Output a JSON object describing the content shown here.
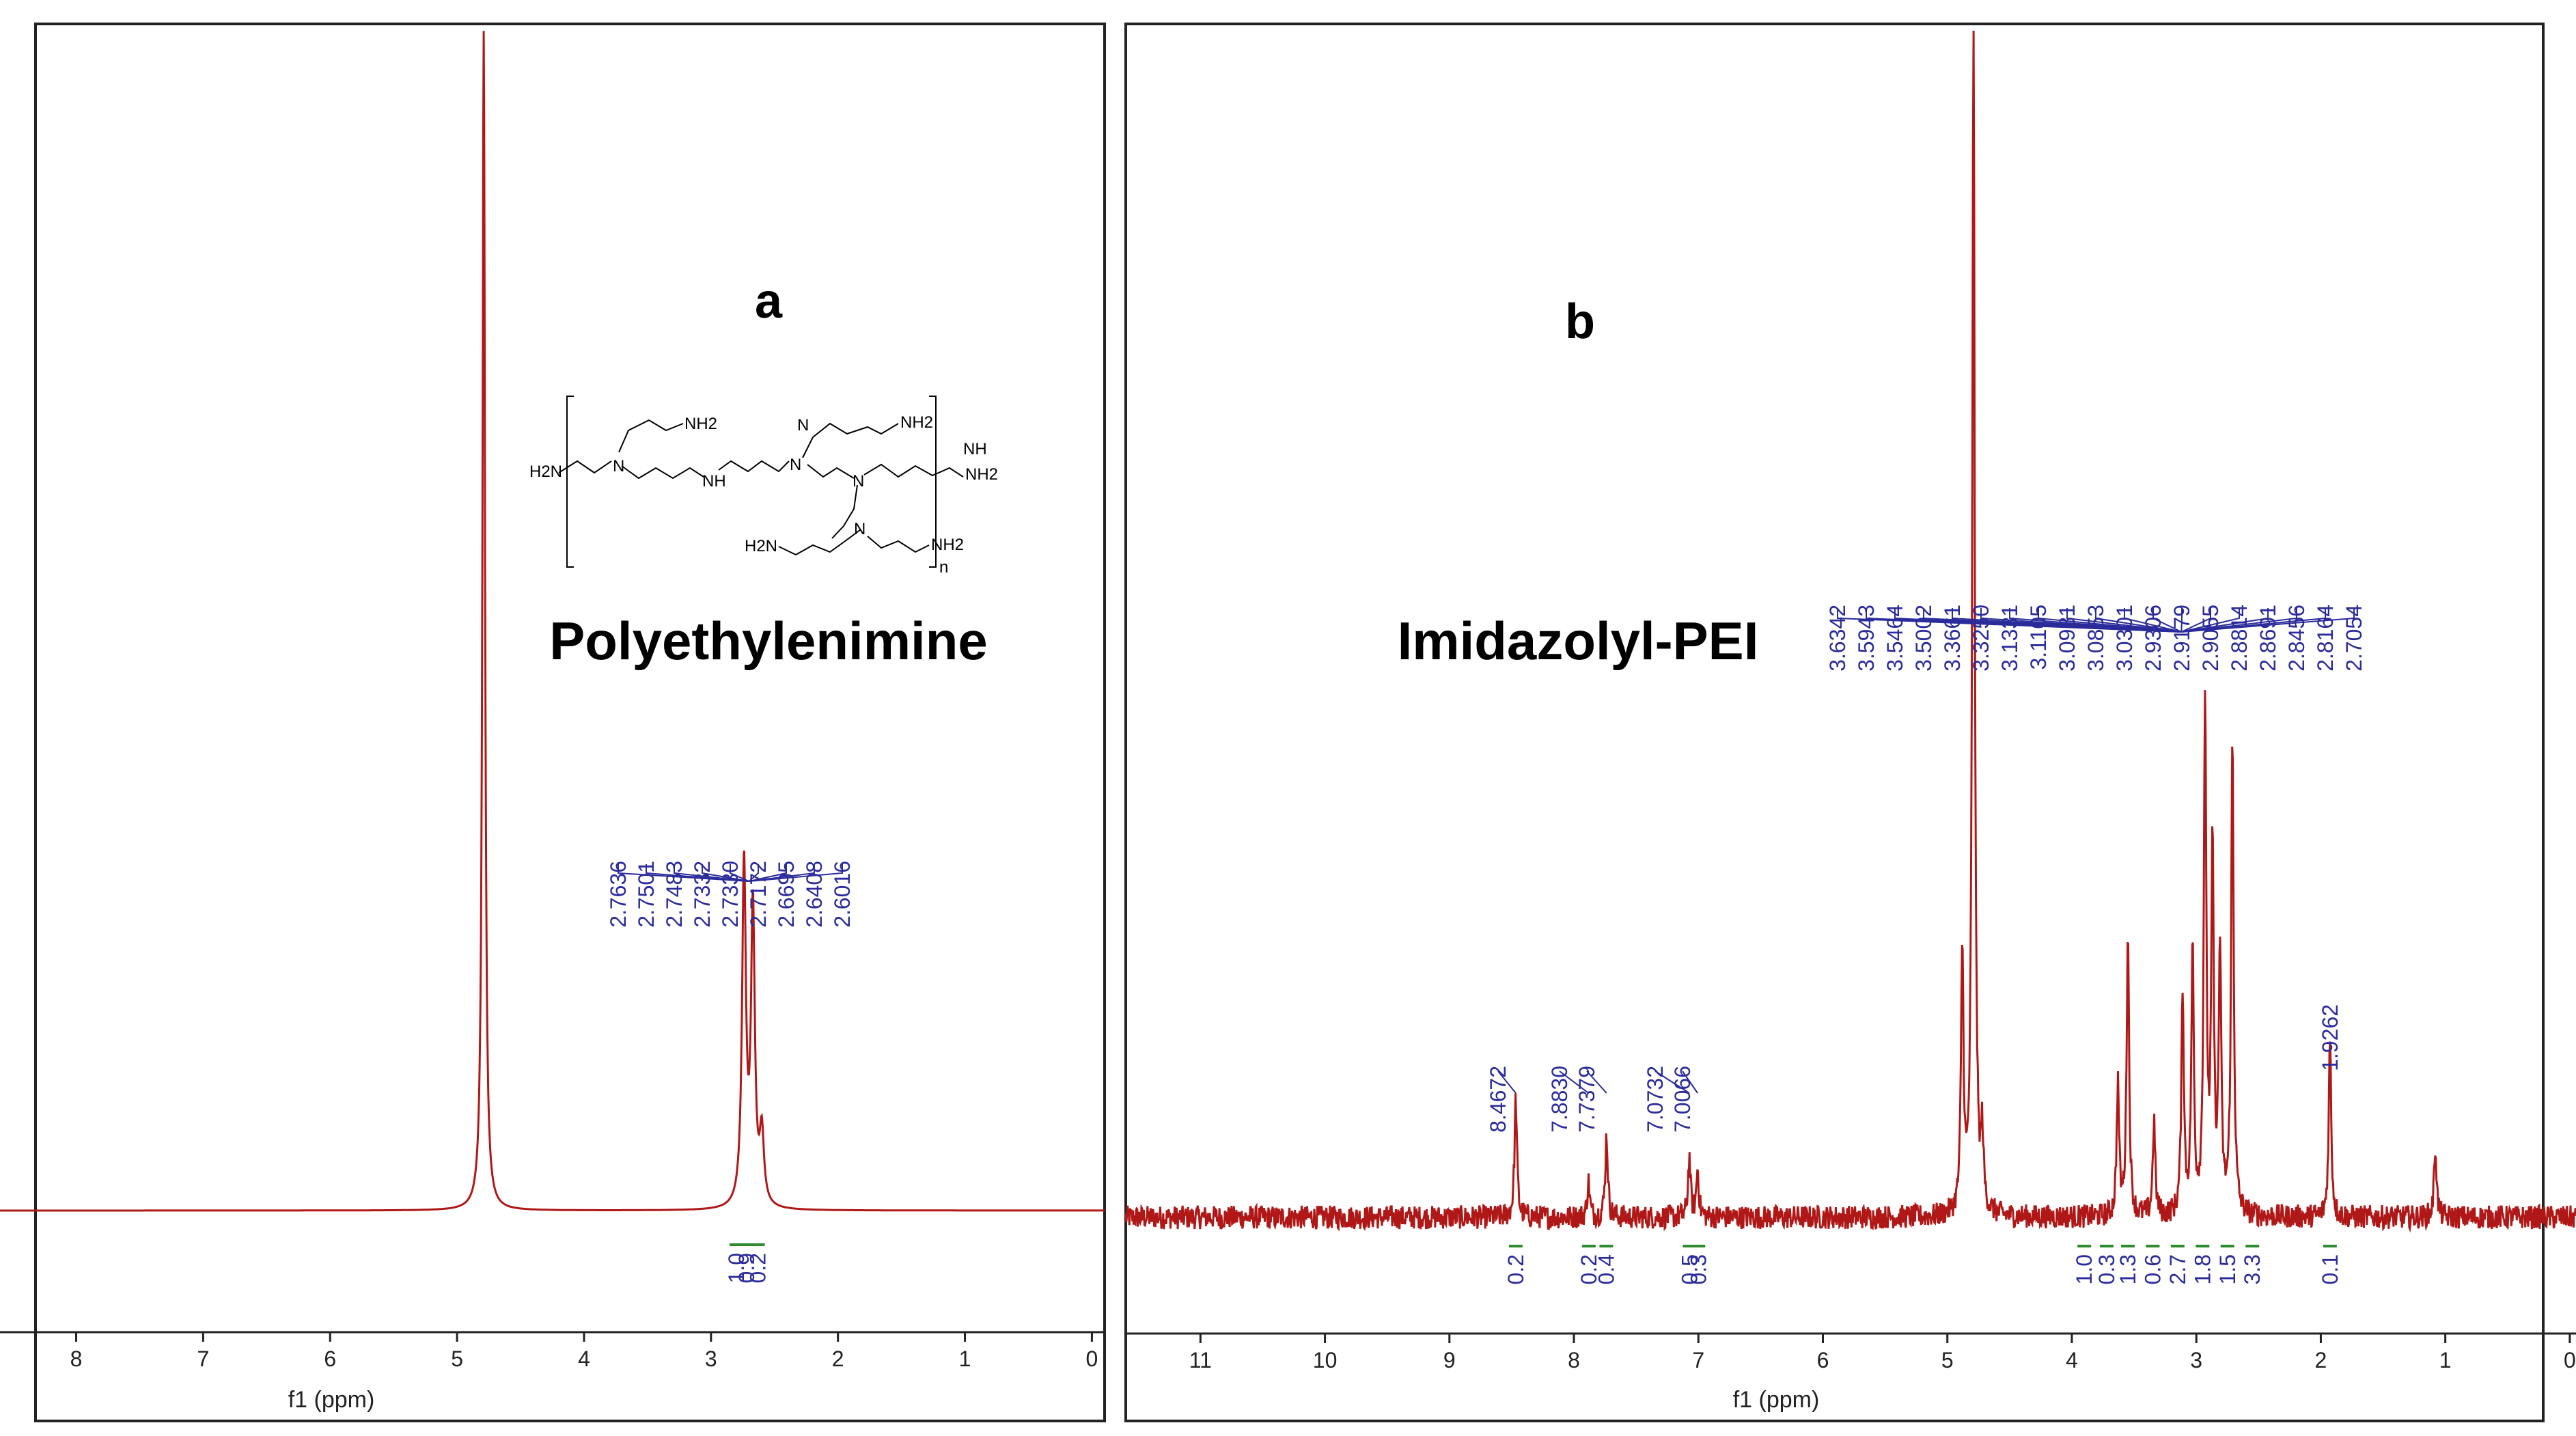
{
  "chart_data": [
    {
      "type": "line",
      "panel_label": "a",
      "title": "Polyethylenimine",
      "xlabel": "f1 (ppm)",
      "ylabel": "",
      "xlim": [
        8.6,
        -0.1
      ],
      "x_ticks": [
        "8",
        "7",
        "6",
        "5",
        "4",
        "3",
        "2",
        "1",
        "0"
      ],
      "peaks": [
        {
          "ppm": 4.79,
          "height": 1.0,
          "width": 0.012
        },
        {
          "ppm": 2.74,
          "height": 0.29,
          "width": 0.018
        },
        {
          "ppm": 2.67,
          "height": 0.25,
          "width": 0.018
        },
        {
          "ppm": 2.6,
          "height": 0.06,
          "width": 0.02
        }
      ],
      "noise": 0.0,
      "peak_labels": [
        "2.7636",
        "2.7501",
        "2.7483",
        "2.7332",
        "2.7330",
        "2.7172",
        "2.6695",
        "2.6408",
        "2.6016"
      ],
      "integrals": [
        {
          "ppm": 2.8,
          "value": "1.0"
        },
        {
          "ppm": 2.72,
          "value": "0.9"
        },
        {
          "ppm": 2.63,
          "value": "0.2"
        }
      ],
      "structure": {
        "groups": [
          "H2N",
          "NH2",
          "NH",
          "N",
          "n"
        ]
      }
    },
    {
      "type": "line",
      "panel_label": "b",
      "title": "Imidazolyl-PEI",
      "xlabel": "f1 (ppm)",
      "ylabel": "",
      "xlim": [
        11.6,
        -0.05
      ],
      "x_ticks": [
        "11",
        "10",
        "9",
        "8",
        "7",
        "6",
        "5",
        "4",
        "3",
        "2",
        "1",
        "0"
      ],
      "peaks": [
        {
          "ppm": 8.4672,
          "height": 0.1
        },
        {
          "ppm": 7.883,
          "height": 0.03
        },
        {
          "ppm": 7.7379,
          "height": 0.07
        },
        {
          "ppm": 7.0732,
          "height": 0.05
        },
        {
          "ppm": 7.0066,
          "height": 0.04
        },
        {
          "ppm": 4.88,
          "height": 0.22
        },
        {
          "ppm": 4.79,
          "height": 1.0
        },
        {
          "ppm": 4.72,
          "height": 0.06
        },
        {
          "ppm": 3.63,
          "height": 0.11
        },
        {
          "ppm": 3.55,
          "height": 0.24
        },
        {
          "ppm": 3.34,
          "height": 0.08
        },
        {
          "ppm": 3.11,
          "height": 0.19
        },
        {
          "ppm": 3.03,
          "height": 0.22
        },
        {
          "ppm": 2.93,
          "height": 0.43
        },
        {
          "ppm": 2.87,
          "height": 0.3
        },
        {
          "ppm": 2.81,
          "height": 0.22
        },
        {
          "ppm": 2.71,
          "height": 0.4
        },
        {
          "ppm": 1.9262,
          "height": 0.15
        },
        {
          "ppm": 1.08,
          "height": 0.06
        }
      ],
      "noise": 0.01,
      "peak_labels_left": [
        "8.4672",
        "7.8830",
        "7.7379",
        "7.0732",
        "7.0066"
      ],
      "peak_labels_group": [
        "3.6342",
        "3.5943",
        "3.5464",
        "3.5002",
        "3.3661",
        "3.3250",
        "3.1331",
        "3.1105",
        "3.0981",
        "3.0853",
        "3.0301",
        "2.9306",
        "2.9179",
        "2.9055",
        "2.8814",
        "2.8691",
        "2.8456",
        "2.8164",
        "2.7054"
      ],
      "peak_label_right": "1.9262",
      "integrals": [
        {
          "ppm": 8.4672,
          "value": "0.2"
        },
        {
          "ppm": 7.88,
          "value": "0.2"
        },
        {
          "ppm": 7.74,
          "value": "0.4"
        },
        {
          "ppm": 7.07,
          "value": "0.5"
        },
        {
          "ppm": 7.0,
          "value": "0.3"
        },
        {
          "ppm": 3.9,
          "value": "1.0"
        },
        {
          "ppm": 3.72,
          "value": "0.3"
        },
        {
          "ppm": 3.55,
          "value": "1.3"
        },
        {
          "ppm": 3.35,
          "value": "0.6"
        },
        {
          "ppm": 3.15,
          "value": "2.7"
        },
        {
          "ppm": 2.95,
          "value": "1.8"
        },
        {
          "ppm": 2.75,
          "value": "1.5"
        },
        {
          "ppm": 2.55,
          "value": "3.3"
        },
        {
          "ppm": 1.9262,
          "value": "0.1"
        }
      ]
    }
  ],
  "colors": {
    "spectrum": "#b01818",
    "labels": "#2b2b9b",
    "integral_marks": "#2e8b2e",
    "axis": "#222222"
  }
}
